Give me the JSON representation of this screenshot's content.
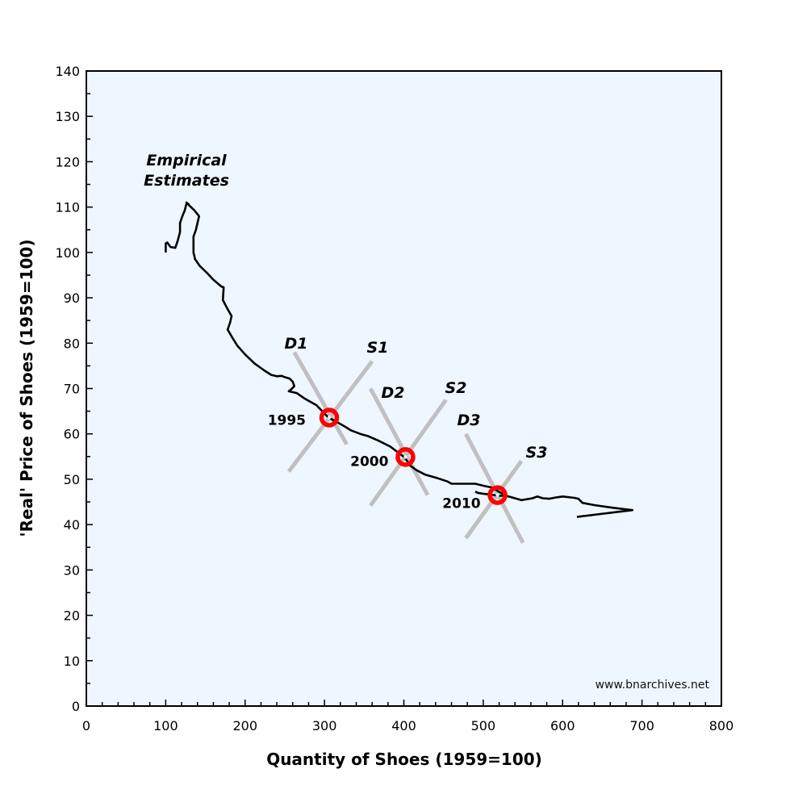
{
  "chart_data": {
    "type": "line",
    "xlabel": "Quantity of Shoes (1959=100)",
    "ylabel": "'Real' Price of Shoes (1959=100)",
    "xlim": [
      0,
      800
    ],
    "ylim": [
      0,
      140
    ],
    "xticks": [
      0,
      100,
      200,
      300,
      400,
      500,
      600,
      700,
      800
    ],
    "yticks": [
      0,
      10,
      20,
      30,
      40,
      50,
      60,
      70,
      80,
      90,
      100,
      110,
      120,
      130,
      140
    ],
    "grid": false,
    "background_color": "#eef6ff",
    "line_color": "#000000",
    "curve_label": "Empirical Estimates",
    "series": [
      {
        "values": [
          [
            100,
            100
          ],
          [
            100,
            102
          ],
          [
            102,
            102.2
          ],
          [
            106,
            101.2
          ],
          [
            112,
            101
          ],
          [
            115,
            102.5
          ],
          [
            118,
            104.5
          ],
          [
            118,
            106.5
          ],
          [
            121,
            108
          ],
          [
            124,
            109.3
          ],
          [
            126,
            110.7
          ],
          [
            127,
            110.9
          ],
          [
            129,
            110.6
          ],
          [
            126,
            111
          ],
          [
            130,
            110.3
          ],
          [
            136,
            109.3
          ],
          [
            142,
            108
          ],
          [
            138,
            105
          ],
          [
            135,
            103.5
          ],
          [
            135,
            100
          ],
          [
            137,
            98.5
          ],
          [
            143,
            97
          ],
          [
            152,
            95.5
          ],
          [
            160,
            94
          ],
          [
            170,
            92.5
          ],
          [
            173,
            92.3
          ],
          [
            172,
            89.5
          ],
          [
            178,
            87.5
          ],
          [
            183,
            86
          ],
          [
            181,
            84.5
          ],
          [
            178,
            83
          ],
          [
            183,
            81.5
          ],
          [
            190,
            79.5
          ],
          [
            200,
            77.5
          ],
          [
            212,
            75.5
          ],
          [
            224,
            74
          ],
          [
            233,
            73
          ],
          [
            240,
            72.7
          ],
          [
            246,
            72.8
          ],
          [
            250,
            72.5
          ],
          [
            256,
            72.2
          ],
          [
            260,
            71.5
          ],
          [
            262,
            70.5
          ],
          [
            258,
            69.8
          ],
          [
            255,
            69.4
          ],
          [
            265,
            69
          ],
          [
            275,
            67.8
          ],
          [
            290,
            66.3
          ],
          [
            305,
            63.6
          ],
          [
            317,
            62.5
          ],
          [
            325,
            61.7
          ],
          [
            333,
            60.8
          ],
          [
            345,
            60
          ],
          [
            355,
            59.5
          ],
          [
            368,
            58.5
          ],
          [
            383,
            57.2
          ],
          [
            392,
            56
          ],
          [
            401,
            54.8
          ],
          [
            408,
            53
          ],
          [
            416,
            52
          ],
          [
            427,
            51
          ],
          [
            443,
            50.2
          ],
          [
            455,
            49.5
          ],
          [
            460,
            49
          ],
          [
            490,
            49
          ],
          [
            502,
            48.5
          ],
          [
            510,
            48.2
          ],
          [
            513,
            48
          ],
          [
            519,
            47.3
          ],
          [
            530,
            46.3
          ],
          [
            540,
            45.8
          ],
          [
            548,
            45.4
          ],
          [
            562,
            45.8
          ],
          [
            568,
            46.2
          ],
          [
            575,
            45.8
          ],
          [
            583,
            45.7
          ],
          [
            592,
            46
          ],
          [
            600,
            46.2
          ],
          [
            615,
            45.9
          ],
          [
            620,
            45.7
          ],
          [
            625,
            44.8
          ],
          [
            640,
            44.3
          ],
          [
            660,
            43.8
          ],
          [
            688,
            43.2
          ],
          [
            618,
            41.7
          ]
        ]
      },
      {
        "values": [
          [
            490,
            47.3
          ],
          [
            493,
            47.0
          ],
          [
            500,
            46.8
          ],
          [
            510,
            46.6
          ],
          [
            518,
            46.4
          ],
          [
            530,
            46.3
          ]
        ]
      }
    ],
    "line_color_supply_demand": "#c0c0c0",
    "supply_demand_lines": [
      {
        "name": "D1",
        "from": [
          262,
          78
        ],
        "to": [
          328,
          57.7
        ]
      },
      {
        "name": "S1",
        "from": [
          255,
          51.7
        ],
        "to": [
          360,
          76
        ]
      },
      {
        "name": "D2",
        "from": [
          358,
          70
        ],
        "to": [
          430,
          46.5
        ]
      },
      {
        "name": "S2",
        "from": [
          358,
          44.2
        ],
        "to": [
          453,
          67.5
        ]
      },
      {
        "name": "D3",
        "from": [
          478,
          60
        ],
        "to": [
          550,
          36
        ]
      },
      {
        "name": "S3",
        "from": [
          478,
          37
        ],
        "to": [
          548,
          54
        ]
      }
    ],
    "marker_color": "#ff0000",
    "equilibria": [
      {
        "label": "1995",
        "x": 306,
        "y": 63.6
      },
      {
        "label": "2000",
        "x": 402,
        "y": 54.9
      },
      {
        "label": "2010",
        "x": 518,
        "y": 46.5
      }
    ],
    "watermark": "www.bnarchives.net"
  }
}
